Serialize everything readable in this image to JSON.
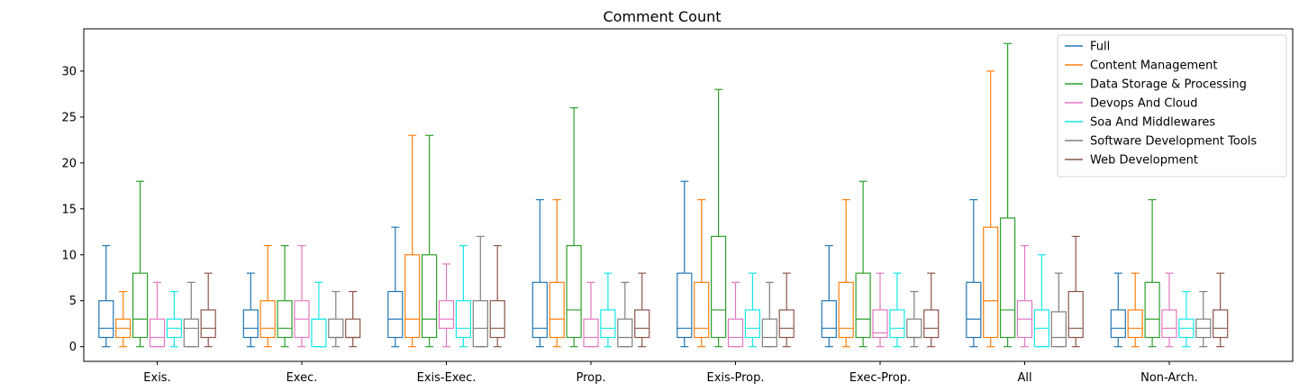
{
  "chart_data": {
    "type": "box",
    "title": "Comment Count",
    "xlabel": "",
    "ylabel": "",
    "ylim": [
      -1.6,
      34.6
    ],
    "yticks": [
      0,
      5,
      10,
      15,
      20,
      25,
      30
    ],
    "categories": [
      "Exis.",
      "Exec.",
      "Exis-Exec.",
      "Prop.",
      "Exis-Prop.",
      "Exec-Prop.",
      "All",
      "Non-Arch."
    ],
    "legend_position": "top-right",
    "series": [
      {
        "name": "Full",
        "color": "#1f77b4",
        "boxes": [
          {
            "min": 0,
            "q1": 1,
            "median": 2,
            "q3": 5,
            "max": 11
          },
          {
            "min": 0,
            "q1": 1,
            "median": 2,
            "q3": 4,
            "max": 8
          },
          {
            "min": 0,
            "q1": 1,
            "median": 3,
            "q3": 6,
            "max": 13
          },
          {
            "min": 0,
            "q1": 1,
            "median": 2,
            "q3": 7,
            "max": 16
          },
          {
            "min": 0,
            "q1": 1,
            "median": 2,
            "q3": 8,
            "max": 18
          },
          {
            "min": 0,
            "q1": 1,
            "median": 2,
            "q3": 5,
            "max": 11
          },
          {
            "min": 0,
            "q1": 1,
            "median": 3,
            "q3": 7,
            "max": 16
          },
          {
            "min": 0,
            "q1": 1,
            "median": 2,
            "q3": 4,
            "max": 8
          }
        ]
      },
      {
        "name": "Content Management",
        "color": "#ff7f0e",
        "boxes": [
          {
            "min": 0,
            "q1": 1,
            "median": 2,
            "q3": 3,
            "max": 6
          },
          {
            "min": 0,
            "q1": 1,
            "median": 2,
            "q3": 5,
            "max": 11
          },
          {
            "min": 0,
            "q1": 1,
            "median": 3,
            "q3": 10,
            "max": 23
          },
          {
            "min": 0,
            "q1": 1,
            "median": 3,
            "q3": 7,
            "max": 16
          },
          {
            "min": 0,
            "q1": 1,
            "median": 2,
            "q3": 7,
            "max": 16
          },
          {
            "min": 0,
            "q1": 1,
            "median": 2,
            "q3": 7,
            "max": 16
          },
          {
            "min": 0,
            "q1": 1,
            "median": 5,
            "q3": 13,
            "max": 30
          },
          {
            "min": 0,
            "q1": 1,
            "median": 2,
            "q3": 4,
            "max": 8
          }
        ]
      },
      {
        "name": "Data Storage & Processing",
        "color": "#2ca02c",
        "boxes": [
          {
            "min": 0,
            "q1": 1,
            "median": 3,
            "q3": 8,
            "max": 18
          },
          {
            "min": 0,
            "q1": 1,
            "median": 2,
            "q3": 5,
            "max": 11
          },
          {
            "min": 0,
            "q1": 1,
            "median": 3,
            "q3": 10,
            "max": 23
          },
          {
            "min": 0,
            "q1": 1,
            "median": 4,
            "q3": 11,
            "max": 26
          },
          {
            "min": 0,
            "q1": 1,
            "median": 4,
            "q3": 12,
            "max": 28
          },
          {
            "min": 0,
            "q1": 1,
            "median": 3,
            "q3": 8,
            "max": 18
          },
          {
            "min": 0,
            "q1": 1,
            "median": 4,
            "q3": 14,
            "max": 33
          },
          {
            "min": 0,
            "q1": 1,
            "median": 3,
            "q3": 7,
            "max": 16
          }
        ]
      },
      {
        "name": "Devops And Cloud",
        "color": "#e377c2",
        "boxes": [
          {
            "min": 0,
            "q1": 0,
            "median": 1,
            "q3": 3,
            "max": 7
          },
          {
            "min": 0,
            "q1": 1,
            "median": 3,
            "q3": 5,
            "max": 11
          },
          {
            "min": 0,
            "q1": 2,
            "median": 3,
            "q3": 5,
            "max": 9
          },
          {
            "min": 0,
            "q1": 0,
            "median": 1,
            "q3": 3,
            "max": 7
          },
          {
            "min": 0,
            "q1": 0,
            "median": 1,
            "q3": 3,
            "max": 7
          },
          {
            "min": 0,
            "q1": 1,
            "median": 1.5,
            "q3": 4,
            "max": 8
          },
          {
            "min": 0,
            "q1": 1,
            "median": 3,
            "q3": 5,
            "max": 11
          },
          {
            "min": 0,
            "q1": 1,
            "median": 2,
            "q3": 4,
            "max": 8
          }
        ]
      },
      {
        "name": "Soa And Middlewares",
        "color": "#17e6e6",
        "boxes": [
          {
            "min": 0,
            "q1": 1,
            "median": 2,
            "q3": 3,
            "max": 6
          },
          {
            "min": 0,
            "q1": 0,
            "median": 3,
            "q3": 3,
            "max": 7
          },
          {
            "min": 0,
            "q1": 1,
            "median": 2,
            "q3": 5,
            "max": 11
          },
          {
            "min": 0,
            "q1": 1,
            "median": 2,
            "q3": 4,
            "max": 8
          },
          {
            "min": 0,
            "q1": 1,
            "median": 2,
            "q3": 4,
            "max": 8
          },
          {
            "min": 0,
            "q1": 1,
            "median": 2,
            "q3": 4,
            "max": 8
          },
          {
            "min": 0,
            "q1": 0,
            "median": 2,
            "q3": 4,
            "max": 10
          },
          {
            "min": 0,
            "q1": 1,
            "median": 2,
            "q3": 3,
            "max": 6
          }
        ]
      },
      {
        "name": "Software Development Tools",
        "color": "#7f7f7f",
        "boxes": [
          {
            "min": 0,
            "q1": 0,
            "median": 2,
            "q3": 3,
            "max": 7
          },
          {
            "min": 0,
            "q1": 1,
            "median": 1,
            "q3": 3,
            "max": 6
          },
          {
            "min": 0,
            "q1": 0,
            "median": 2,
            "q3": 5,
            "max": 12
          },
          {
            "min": 0,
            "q1": 0,
            "median": 1,
            "q3": 3,
            "max": 7
          },
          {
            "min": 0,
            "q1": 0,
            "median": 1,
            "q3": 3,
            "max": 7
          },
          {
            "min": 0,
            "q1": 1,
            "median": 1,
            "q3": 3,
            "max": 6
          },
          {
            "min": 0,
            "q1": 0,
            "median": 1,
            "q3": 3.8,
            "max": 8
          },
          {
            "min": 0,
            "q1": 1,
            "median": 2,
            "q3": 3,
            "max": 6
          }
        ]
      },
      {
        "name": "Web Development",
        "color": "#8c564b",
        "boxes": [
          {
            "min": 0,
            "q1": 1,
            "median": 2,
            "q3": 4,
            "max": 8
          },
          {
            "min": 0,
            "q1": 1,
            "median": 1,
            "q3": 3,
            "max": 6
          },
          {
            "min": 0,
            "q1": 1,
            "median": 2,
            "q3": 5,
            "max": 11
          },
          {
            "min": 0,
            "q1": 1,
            "median": 2,
            "q3": 4,
            "max": 8
          },
          {
            "min": 0,
            "q1": 1,
            "median": 2,
            "q3": 4,
            "max": 8
          },
          {
            "min": 0,
            "q1": 1,
            "median": 2,
            "q3": 4,
            "max": 8
          },
          {
            "min": 0,
            "q1": 1,
            "median": 2,
            "q3": 6,
            "max": 12
          },
          {
            "min": 0,
            "q1": 1,
            "median": 2,
            "q3": 4,
            "max": 8
          }
        ]
      }
    ]
  }
}
